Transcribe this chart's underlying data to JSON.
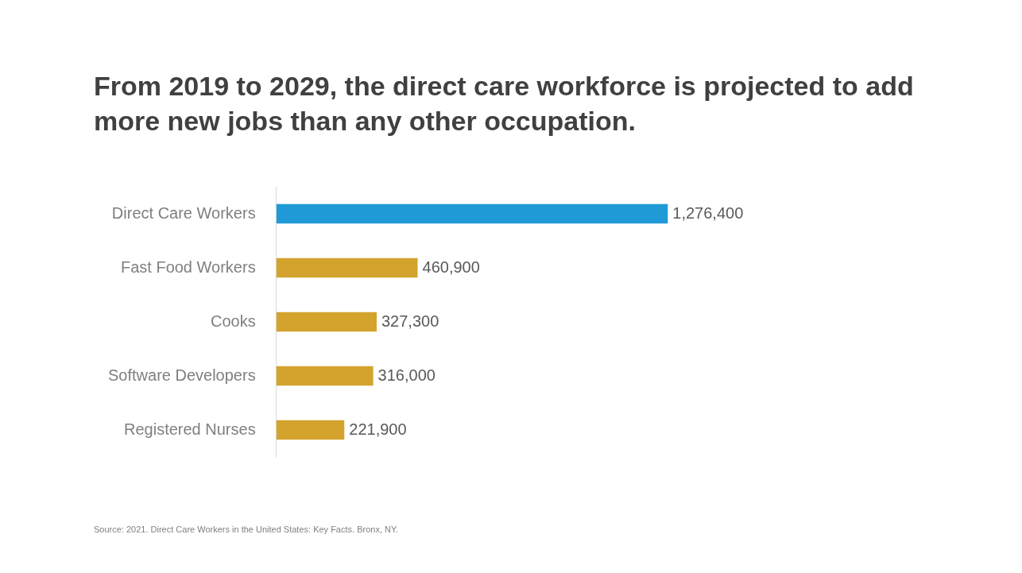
{
  "chart_data": {
    "type": "bar",
    "orientation": "horizontal",
    "title": "From 2019 to 2029, the direct care workforce is projected to add more new jobs than any other occupation.",
    "categories": [
      "Direct Care Workers",
      "Fast Food Workers",
      "Cooks",
      "Software Developers",
      "Registered Nurses"
    ],
    "values": [
      1276400,
      460900,
      327300,
      316000,
      221900
    ],
    "colors": [
      "#1f9ad6",
      "#d4a32e",
      "#d4a32e",
      "#d4a32e",
      "#d4a32e"
    ],
    "value_labels": [
      "1,276,400",
      "460,900",
      "327,300",
      "316,000",
      "221,900"
    ],
    "tick_labels": "y",
    "legend": false,
    "annotations": [
      "Source: 2021. Direct Care Workers in the United States: Key Facts. Bronx, NY."
    ]
  }
}
